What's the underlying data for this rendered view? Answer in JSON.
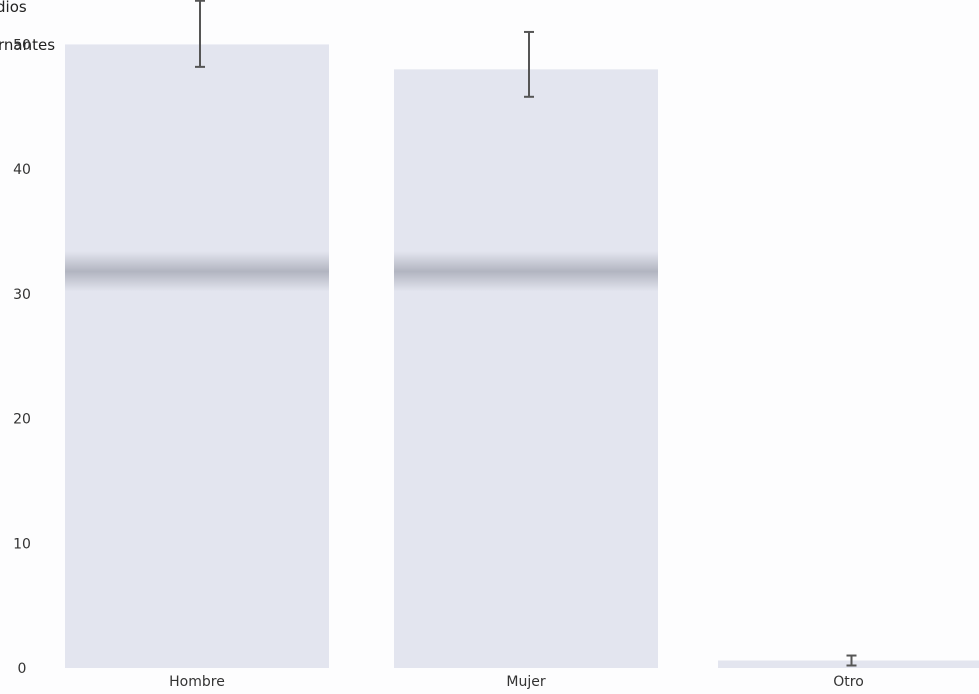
{
  "chart_data": {
    "type": "bar",
    "title": "",
    "xlabel": "",
    "ylabel_lines": [
      "dios",
      "rnantes"
    ],
    "categories": [
      "Hombre",
      "Mujer",
      "Otro"
    ],
    "values": [
      50,
      48,
      0.6
    ],
    "error_bars": [
      {
        "low": 48.2,
        "high": 53.5
      },
      {
        "low": 45.8,
        "high": 51.0
      },
      {
        "low": 0.2,
        "high": 1.0
      }
    ],
    "ylim": [
      0,
      53
    ],
    "yticks": [
      0,
      10,
      20,
      30,
      40,
      50
    ],
    "ytick_labels": [
      "0",
      "10",
      "20",
      "30",
      "40",
      "50"
    ],
    "grid": false,
    "legend": "none",
    "colors": {
      "bar": "#e3e5ef",
      "bar_band": "#a9acb8",
      "error_bar": "#555555"
    }
  }
}
